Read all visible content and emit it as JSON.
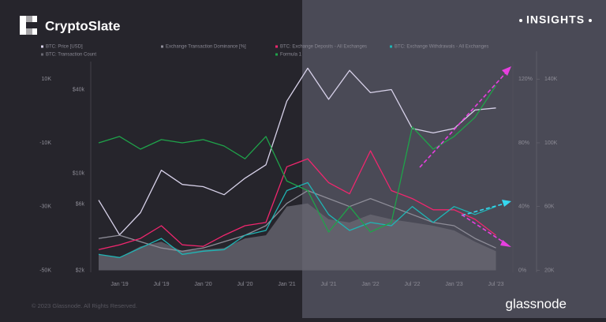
{
  "header": {
    "brand": "CryptoSlate",
    "tag": "INSIGHTS"
  },
  "footer": {
    "copyright": "© 2023 Glassnode. All Rights Reserved.",
    "source": "glassnode"
  },
  "chart_data": {
    "type": "line",
    "categories": [
      null,
      "Jan '19",
      null,
      "Jul '19",
      null,
      "Jan '20",
      null,
      "Jul '20",
      null,
      "Jan '21",
      null,
      "Jul '21",
      null,
      "Jan '22",
      null,
      "Jul '22",
      null,
      "Jan '23",
      null,
      "Jul '23"
    ],
    "ylim": [
      2000,
      62000
    ],
    "ylog": true,
    "yticks": [
      {
        "value": 2000,
        "label": "$2k"
      },
      {
        "value": 6000,
        "label": "$6k"
      },
      {
        "value": 10000,
        "label": "$10k"
      },
      {
        "value": 40000,
        "label": "$40k"
      }
    ],
    "y2lim": [
      0,
      130
    ],
    "y2ticks": [
      {
        "value": 0,
        "label": "0%"
      },
      {
        "value": 40,
        "label": "40%"
      },
      {
        "value": 80,
        "label": "80%"
      },
      {
        "value": 120,
        "label": "120%"
      }
    ],
    "y3lim": [
      -50000,
      15000
    ],
    "y3ticks": [
      {
        "value": -50000,
        "label": "-50K"
      },
      {
        "value": -30000,
        "label": "-30K"
      },
      {
        "value": -10000,
        "label": "-10K"
      },
      {
        "value": 10000,
        "label": "10K"
      }
    ],
    "y4lim": [
      20000,
      150000
    ],
    "y4ticks": [
      {
        "value": 20000,
        "label": "20K"
      },
      {
        "value": 60000,
        "label": "60K"
      },
      {
        "value": 100000,
        "label": "100K"
      },
      {
        "value": 140000,
        "label": "140K"
      }
    ],
    "series": [
      {
        "name": "BTC: Price [USD]",
        "color": "#d8d2ea",
        "axis": "y",
        "values": [
          6400,
          3600,
          5200,
          10500,
          8300,
          8000,
          7000,
          9200,
          11500,
          33000,
          57000,
          34000,
          55000,
          38000,
          40000,
          21000,
          19500,
          21000,
          28500,
          29500
        ]
      },
      {
        "name": "Exchange Transaction Dominance [%]",
        "color": "#8e8d98",
        "axis": "y2",
        "values": [
          20,
          22,
          18,
          14,
          12,
          14,
          18,
          22,
          28,
          42,
          50,
          45,
          40,
          45,
          40,
          35,
          30,
          28,
          20,
          14
        ]
      },
      {
        "name": "BTC: Exchange Deposits - All Exchanges",
        "color": "#f0266e",
        "axis": "y4",
        "values": [
          33000,
          36000,
          40000,
          48000,
          36000,
          35000,
          42000,
          48000,
          50000,
          85000,
          90000,
          75000,
          68000,
          95000,
          70000,
          65000,
          58000,
          58000,
          52000,
          42000
        ]
      },
      {
        "name": "BTC: Exchange Withdrawals - All Exchanges",
        "color": "#1fb5b5",
        "axis": "y4",
        "values": [
          30000,
          28000,
          34000,
          40000,
          30000,
          32000,
          33000,
          42000,
          45000,
          70000,
          75000,
          55000,
          45000,
          50000,
          48000,
          60000,
          50000,
          60000,
          55000,
          60000
        ]
      },
      {
        "name": "BTC: Transaction Count",
        "color": "#6b6a74",
        "axis": "y4",
        "area": true,
        "values": [
          30000,
          28000,
          35000,
          38000,
          32000,
          33000,
          34000,
          40000,
          42000,
          60000,
          62000,
          52000,
          50000,
          55000,
          52000,
          50000,
          48000,
          45000,
          38000,
          32000
        ]
      },
      {
        "name": "Formula 1",
        "color": "#1fa34a",
        "axis": "y3",
        "values": [
          -10000,
          -8000,
          -12000,
          -9000,
          -10000,
          -9000,
          -11000,
          -15000,
          -8000,
          -22000,
          -25000,
          -38000,
          -30000,
          -38000,
          -35000,
          -5000,
          -12000,
          -8000,
          -2000,
          8000
        ]
      }
    ]
  }
}
